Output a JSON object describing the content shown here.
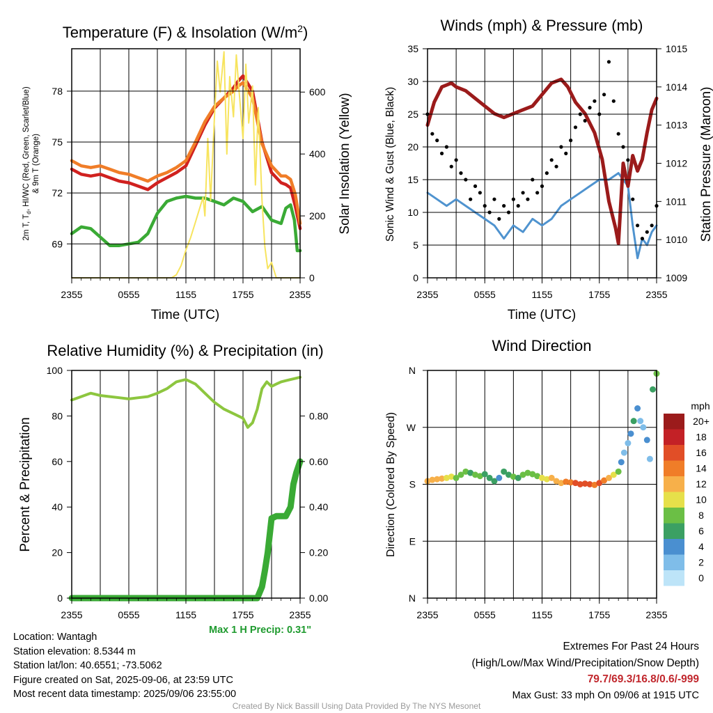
{
  "panels": {
    "temperature": {
      "title": "Temperature (F) & Insolation (W/m",
      "title_sup": "2",
      "title_close": ")",
      "left_ylabel_line1": "2m T, T",
      "left_ylabel_sub": "d",
      "left_ylabel_line1b": ", HI/WC (Red, Green, Scarlet/Blue)",
      "left_ylabel_line2": "& 9m T (Orange)",
      "right_ylabel": "Solar Insolation (Yellow)",
      "xlabel": "Time (UTC)"
    },
    "winds": {
      "title": "Winds (mph) & Pressure (mb)",
      "left_ylabel": "Sonic Wind & Gust (Blue, Black)",
      "right_ylabel": "Station Pressure (Maroon)",
      "xlabel": "Time (UTC)"
    },
    "humidity": {
      "title": "Relative Humidity (%) & Precipitation (in)",
      "left_ylabel": "Percent & Precipitation",
      "precip_note": "Max 1 H Precip: 0.31\""
    },
    "direction": {
      "title": "Wind Direction",
      "left_ylabel": "Direction (Colored By Speed)",
      "legend_unit": "mph"
    }
  },
  "info_left": {
    "location": "Location: Wantagh",
    "elevation": "Station elevation: 8.5344 m",
    "latlon": "Station lat/lon: 40.6551; -73.5062",
    "created": "Figure created on Sat, 2025-09-06, at 23:59 UTC",
    "recent": "Most recent data timestamp: 2025/09/06 23:55:00"
  },
  "info_right": {
    "extremes_title": "Extremes For Past 24 Hours",
    "extremes_fields": "(High/Low/Max Wind/Precipitation/Snow Depth)",
    "extremes_values": "79.7/69.3/16.8/0.6/-999",
    "max_gust": "Max Gust: 33 mph On 09/06 at 1915 UTC"
  },
  "credit": "Created By Nick Bassill Using Data Provided By The NYS Mesonet",
  "colors": {
    "temp_red": "#d0211f",
    "temp_orange": "#f07d28",
    "dewpoint_green": "#3aaa35",
    "insolation_yellow": "#f7e45e",
    "wind_blue": "#4f93cf",
    "gust_black": "#000000",
    "pressure_maroon": "#9b1b1b",
    "rh_green": "#8dc63f",
    "precip_green": "#3aaa35"
  },
  "chart_data": [
    {
      "type": "line",
      "panel": "temperature",
      "x_ticks": [
        "2355",
        "0555",
        "1155",
        "1755",
        "2355"
      ],
      "x_hours": [
        0,
        24
      ],
      "left_ticks": [
        69,
        72,
        75,
        78
      ],
      "left_ylim": [
        67,
        80.5
      ],
      "right_ticks": [
        0,
        200,
        400,
        600
      ],
      "right_ylim": [
        0,
        740
      ],
      "series": [
        {
          "name": "2m T (Red)",
          "axis": "left",
          "color": "#d0211f",
          "x": [
            0,
            1,
            2,
            3,
            4,
            5,
            6,
            7,
            8,
            9,
            10,
            11,
            12,
            13,
            14,
            15,
            16,
            17,
            17.5,
            18,
            19,
            20,
            21,
            22,
            22.5,
            23,
            23.5,
            24
          ],
          "y": [
            73.4,
            73.1,
            73.0,
            73.1,
            72.9,
            72.7,
            72.6,
            72.4,
            72.2,
            72.6,
            72.9,
            73.2,
            73.6,
            74.8,
            76.0,
            77.0,
            77.6,
            78.2,
            78.6,
            78.9,
            78.0,
            75.0,
            73.2,
            72.6,
            72.5,
            72.3,
            71.2,
            69.9
          ]
        },
        {
          "name": "9m T (Orange)",
          "axis": "left",
          "color": "#f07d28",
          "x": [
            0,
            1,
            2,
            3,
            4,
            5,
            6,
            7,
            8,
            9,
            10,
            11,
            12,
            13,
            14,
            15,
            16,
            17,
            17.5,
            18,
            19,
            20,
            21,
            22,
            22.5,
            23,
            23.5,
            24
          ],
          "y": [
            73.9,
            73.6,
            73.5,
            73.6,
            73.4,
            73.2,
            73.1,
            72.9,
            72.7,
            73.0,
            73.2,
            73.5,
            73.9,
            75.0,
            76.2,
            77.1,
            77.6,
            78.0,
            78.3,
            78.5,
            77.6,
            74.9,
            73.6,
            73.0,
            73.0,
            72.8,
            71.9,
            70.2
          ]
        },
        {
          "name": "Dewpoint (Green)",
          "axis": "left",
          "color": "#3aaa35",
          "x": [
            0,
            1,
            2,
            3,
            4,
            5,
            6,
            7,
            8,
            9,
            10,
            11,
            12,
            13,
            14,
            15,
            16,
            17,
            18,
            19,
            20,
            21,
            22,
            22.5,
            23,
            23.4,
            23.7,
            24
          ],
          "y": [
            69.6,
            70.0,
            69.9,
            69.4,
            68.9,
            68.9,
            69.0,
            69.1,
            69.6,
            70.8,
            71.5,
            71.7,
            71.8,
            71.7,
            71.7,
            71.5,
            71.3,
            71.7,
            71.5,
            70.9,
            71.2,
            70.4,
            70.2,
            71.1,
            71.3,
            70.4,
            68.6,
            68.6
          ]
        },
        {
          "name": "Solar Insolation (Yellow)",
          "axis": "right",
          "color": "#f7e45e",
          "x": [
            0,
            10.5,
            11,
            11.5,
            12,
            12.5,
            13,
            13.5,
            13.8,
            14,
            14.3,
            14.6,
            15,
            15.3,
            15.6,
            16,
            16.3,
            16.6,
            17,
            17.3,
            17.6,
            18,
            18.3,
            18.6,
            19,
            19.3,
            19.6,
            20,
            20.3,
            20.6,
            21,
            21.5,
            22,
            24
          ],
          "y": [
            0,
            0,
            10,
            40,
            90,
            130,
            180,
            230,
            260,
            200,
            450,
            250,
            520,
            700,
            600,
            730,
            400,
            650,
            520,
            720,
            600,
            450,
            690,
            500,
            620,
            300,
            550,
            250,
            100,
            30,
            50,
            0,
            0,
            0
          ]
        }
      ]
    },
    {
      "type": "line",
      "panel": "winds",
      "x_ticks": [
        "2355",
        "0555",
        "1155",
        "1755",
        "2355"
      ],
      "x_hours": [
        0,
        24
      ],
      "left_ticks": [
        0,
        5,
        10,
        15,
        20,
        25,
        30,
        35
      ],
      "left_ylim": [
        0,
        35
      ],
      "right_ticks": [
        1009,
        1010,
        1011,
        1012,
        1013,
        1014,
        1015
      ],
      "right_ylim": [
        1009,
        1015
      ],
      "series": [
        {
          "name": "Sonic Wind (Blue)",
          "axis": "left",
          "color": "#4f93cf",
          "x": [
            0,
            1,
            2,
            3,
            4,
            5,
            6,
            7,
            8,
            9,
            10,
            11,
            12,
            13,
            14,
            15,
            16,
            17,
            18,
            19,
            20,
            21,
            21.5,
            22,
            22.5,
            23,
            23.5,
            24
          ],
          "y": [
            13,
            12,
            11,
            12,
            11,
            10,
            9,
            8,
            6,
            8,
            7,
            9,
            8,
            9,
            11,
            12,
            13,
            14,
            15,
            15,
            16,
            14,
            8,
            3,
            6,
            5,
            7,
            8
          ]
        },
        {
          "name": "Gust (Black)",
          "axis": "left",
          "color": "#000000",
          "style": "dots",
          "x": [
            0,
            0.5,
            1,
            1.5,
            2,
            2.5,
            3,
            3.5,
            4,
            4.5,
            5,
            5.5,
            6,
            6.5,
            7,
            7.5,
            8,
            8.5,
            9,
            9.5,
            10,
            10.5,
            11,
            11.5,
            12,
            12.5,
            13,
            13.5,
            14,
            14.5,
            15,
            15.5,
            16,
            16.5,
            17,
            17.5,
            18,
            18.5,
            19,
            19.5,
            20,
            20.5,
            21,
            21.5,
            22,
            22.5,
            23,
            23.5,
            24
          ],
          "y": [
            25,
            22,
            21,
            19,
            20,
            17,
            18,
            16,
            15,
            12,
            14,
            13,
            11,
            10,
            12,
            9,
            11,
            10,
            12,
            11,
            13,
            12,
            15,
            13,
            14,
            16,
            18,
            17,
            20,
            19,
            21,
            23,
            25,
            24,
            26,
            27,
            25,
            28,
            33,
            27,
            22,
            20,
            18,
            12,
            8,
            6,
            7,
            8,
            11
          ]
        },
        {
          "name": "Station Pressure (Maroon)",
          "axis": "right",
          "color": "#9b1b1b",
          "x": [
            0,
            0.7,
            1.5,
            2.5,
            3,
            4,
            5,
            6,
            7,
            8,
            9,
            10,
            11,
            12,
            13,
            14,
            14.7,
            15.5,
            16.5,
            17.5,
            18.3,
            19,
            19.7,
            20,
            20.5,
            21,
            21.5,
            22,
            22.5,
            23,
            23.5,
            24
          ],
          "y": [
            1013.0,
            1013.6,
            1014.0,
            1014.1,
            1014.0,
            1013.9,
            1013.7,
            1013.5,
            1013.3,
            1013.2,
            1013.3,
            1013.4,
            1013.5,
            1013.8,
            1014.1,
            1014.2,
            1014.0,
            1013.6,
            1013.3,
            1012.8,
            1012.1,
            1011.0,
            1010.3,
            1009.9,
            1012.0,
            1011.4,
            1012.2,
            1011.8,
            1012.1,
            1012.8,
            1013.4,
            1013.7
          ]
        }
      ]
    },
    {
      "type": "line",
      "panel": "humidity",
      "x_ticks": [
        "2355",
        "0555",
        "1155",
        "1755",
        "2355"
      ],
      "x_hours": [
        0,
        24
      ],
      "left_ticks": [
        0,
        20,
        40,
        60,
        80,
        100
      ],
      "left_ylim": [
        0,
        100
      ],
      "right_ticks": [
        "0.00",
        "0.20",
        "0.40",
        "0.60",
        "0.80"
      ],
      "right_ylim": [
        0,
        1.0
      ],
      "series": [
        {
          "name": "Relative Humidity",
          "axis": "left",
          "color": "#8dc63f",
          "x": [
            0,
            1,
            2,
            3,
            4,
            5,
            6,
            7,
            8,
            9,
            10,
            11,
            12,
            13,
            14,
            15,
            16,
            17,
            18,
            18.5,
            19,
            19.5,
            20,
            20.5,
            21,
            21.5,
            22,
            22.5,
            23,
            23.5,
            24
          ],
          "y": [
            87,
            88.5,
            90,
            89,
            88.5,
            88,
            87.5,
            88,
            88.5,
            90,
            92,
            95,
            96,
            94,
            90,
            86,
            83,
            81,
            79,
            75,
            77,
            83,
            92,
            95,
            93,
            94,
            95,
            95.5,
            96,
            96.5,
            97
          ]
        },
        {
          "name": "Precipitation",
          "axis": "right",
          "color": "#3aaa35",
          "style": "dots",
          "x": [
            0,
            2,
            4,
            6,
            8,
            10,
            12,
            14,
            16,
            18,
            19.5,
            20,
            20.3,
            20.6,
            21,
            21.5,
            22,
            22.5,
            23,
            23.3,
            23.6,
            24
          ],
          "y": [
            0,
            0,
            0,
            0,
            0,
            0,
            0,
            0,
            0,
            0,
            0,
            0.05,
            0.12,
            0.2,
            0.35,
            0.36,
            0.36,
            0.36,
            0.4,
            0.5,
            0.55,
            0.6
          ]
        }
      ]
    },
    {
      "type": "scatter",
      "panel": "direction",
      "x_ticks": [
        "2355",
        "0555",
        "1155",
        "1755",
        "2355"
      ],
      "x_hours": [
        0,
        24
      ],
      "y_ticks": [
        "N",
        "E",
        "S",
        "W",
        "N"
      ],
      "ylim": [
        0,
        360
      ],
      "legend_labels": [
        "0",
        "2",
        "4",
        "6",
        "8",
        "10",
        "12",
        "14",
        "16",
        "18",
        "20+"
      ],
      "legend_colors": [
        "#bde4f8",
        "#7fbde9",
        "#4a8fd0",
        "#3ba063",
        "#6bbf45",
        "#e6e04a",
        "#f7b04a",
        "#f07d28",
        "#e14e27",
        "#c32126",
        "#9b1b1b"
      ],
      "x": [
        0,
        0.5,
        1,
        1.5,
        2,
        2.5,
        3,
        3.5,
        4,
        4.5,
        5,
        5.5,
        6,
        6.5,
        7,
        7.5,
        8,
        8.5,
        9,
        9.5,
        10,
        10.5,
        11,
        11.5,
        12,
        12.5,
        13,
        13.5,
        14,
        14.5,
        15,
        15.5,
        16,
        16.5,
        17,
        17.5,
        18,
        18.5,
        19,
        19.5,
        20,
        20.3,
        20.6,
        21,
        21.3,
        21.6,
        22,
        22.3,
        22.6,
        23,
        23.3,
        23.6,
        24
      ],
      "y": [
        185,
        187,
        188,
        189,
        190,
        192,
        190,
        195,
        200,
        198,
        195,
        193,
        196,
        190,
        185,
        190,
        200,
        195,
        192,
        190,
        195,
        198,
        196,
        193,
        190,
        188,
        190,
        185,
        182,
        184,
        183,
        182,
        180,
        181,
        180,
        179,
        182,
        186,
        190,
        195,
        200,
        215,
        230,
        245,
        260,
        280,
        300,
        280,
        270,
        250,
        220,
        330,
        355
      ],
      "speed": [
        13,
        12,
        13,
        12,
        11,
        10,
        9,
        8,
        8,
        7,
        8,
        9,
        7,
        6,
        6,
        5,
        7,
        6,
        8,
        7,
        9,
        8,
        8,
        9,
        10,
        11,
        12,
        12,
        13,
        14,
        15,
        16,
        16,
        17,
        16,
        15,
        16,
        14,
        12,
        10,
        8,
        4,
        2,
        3,
        4,
        6,
        5,
        3,
        2,
        4,
        3,
        6,
        8
      ]
    }
  ]
}
